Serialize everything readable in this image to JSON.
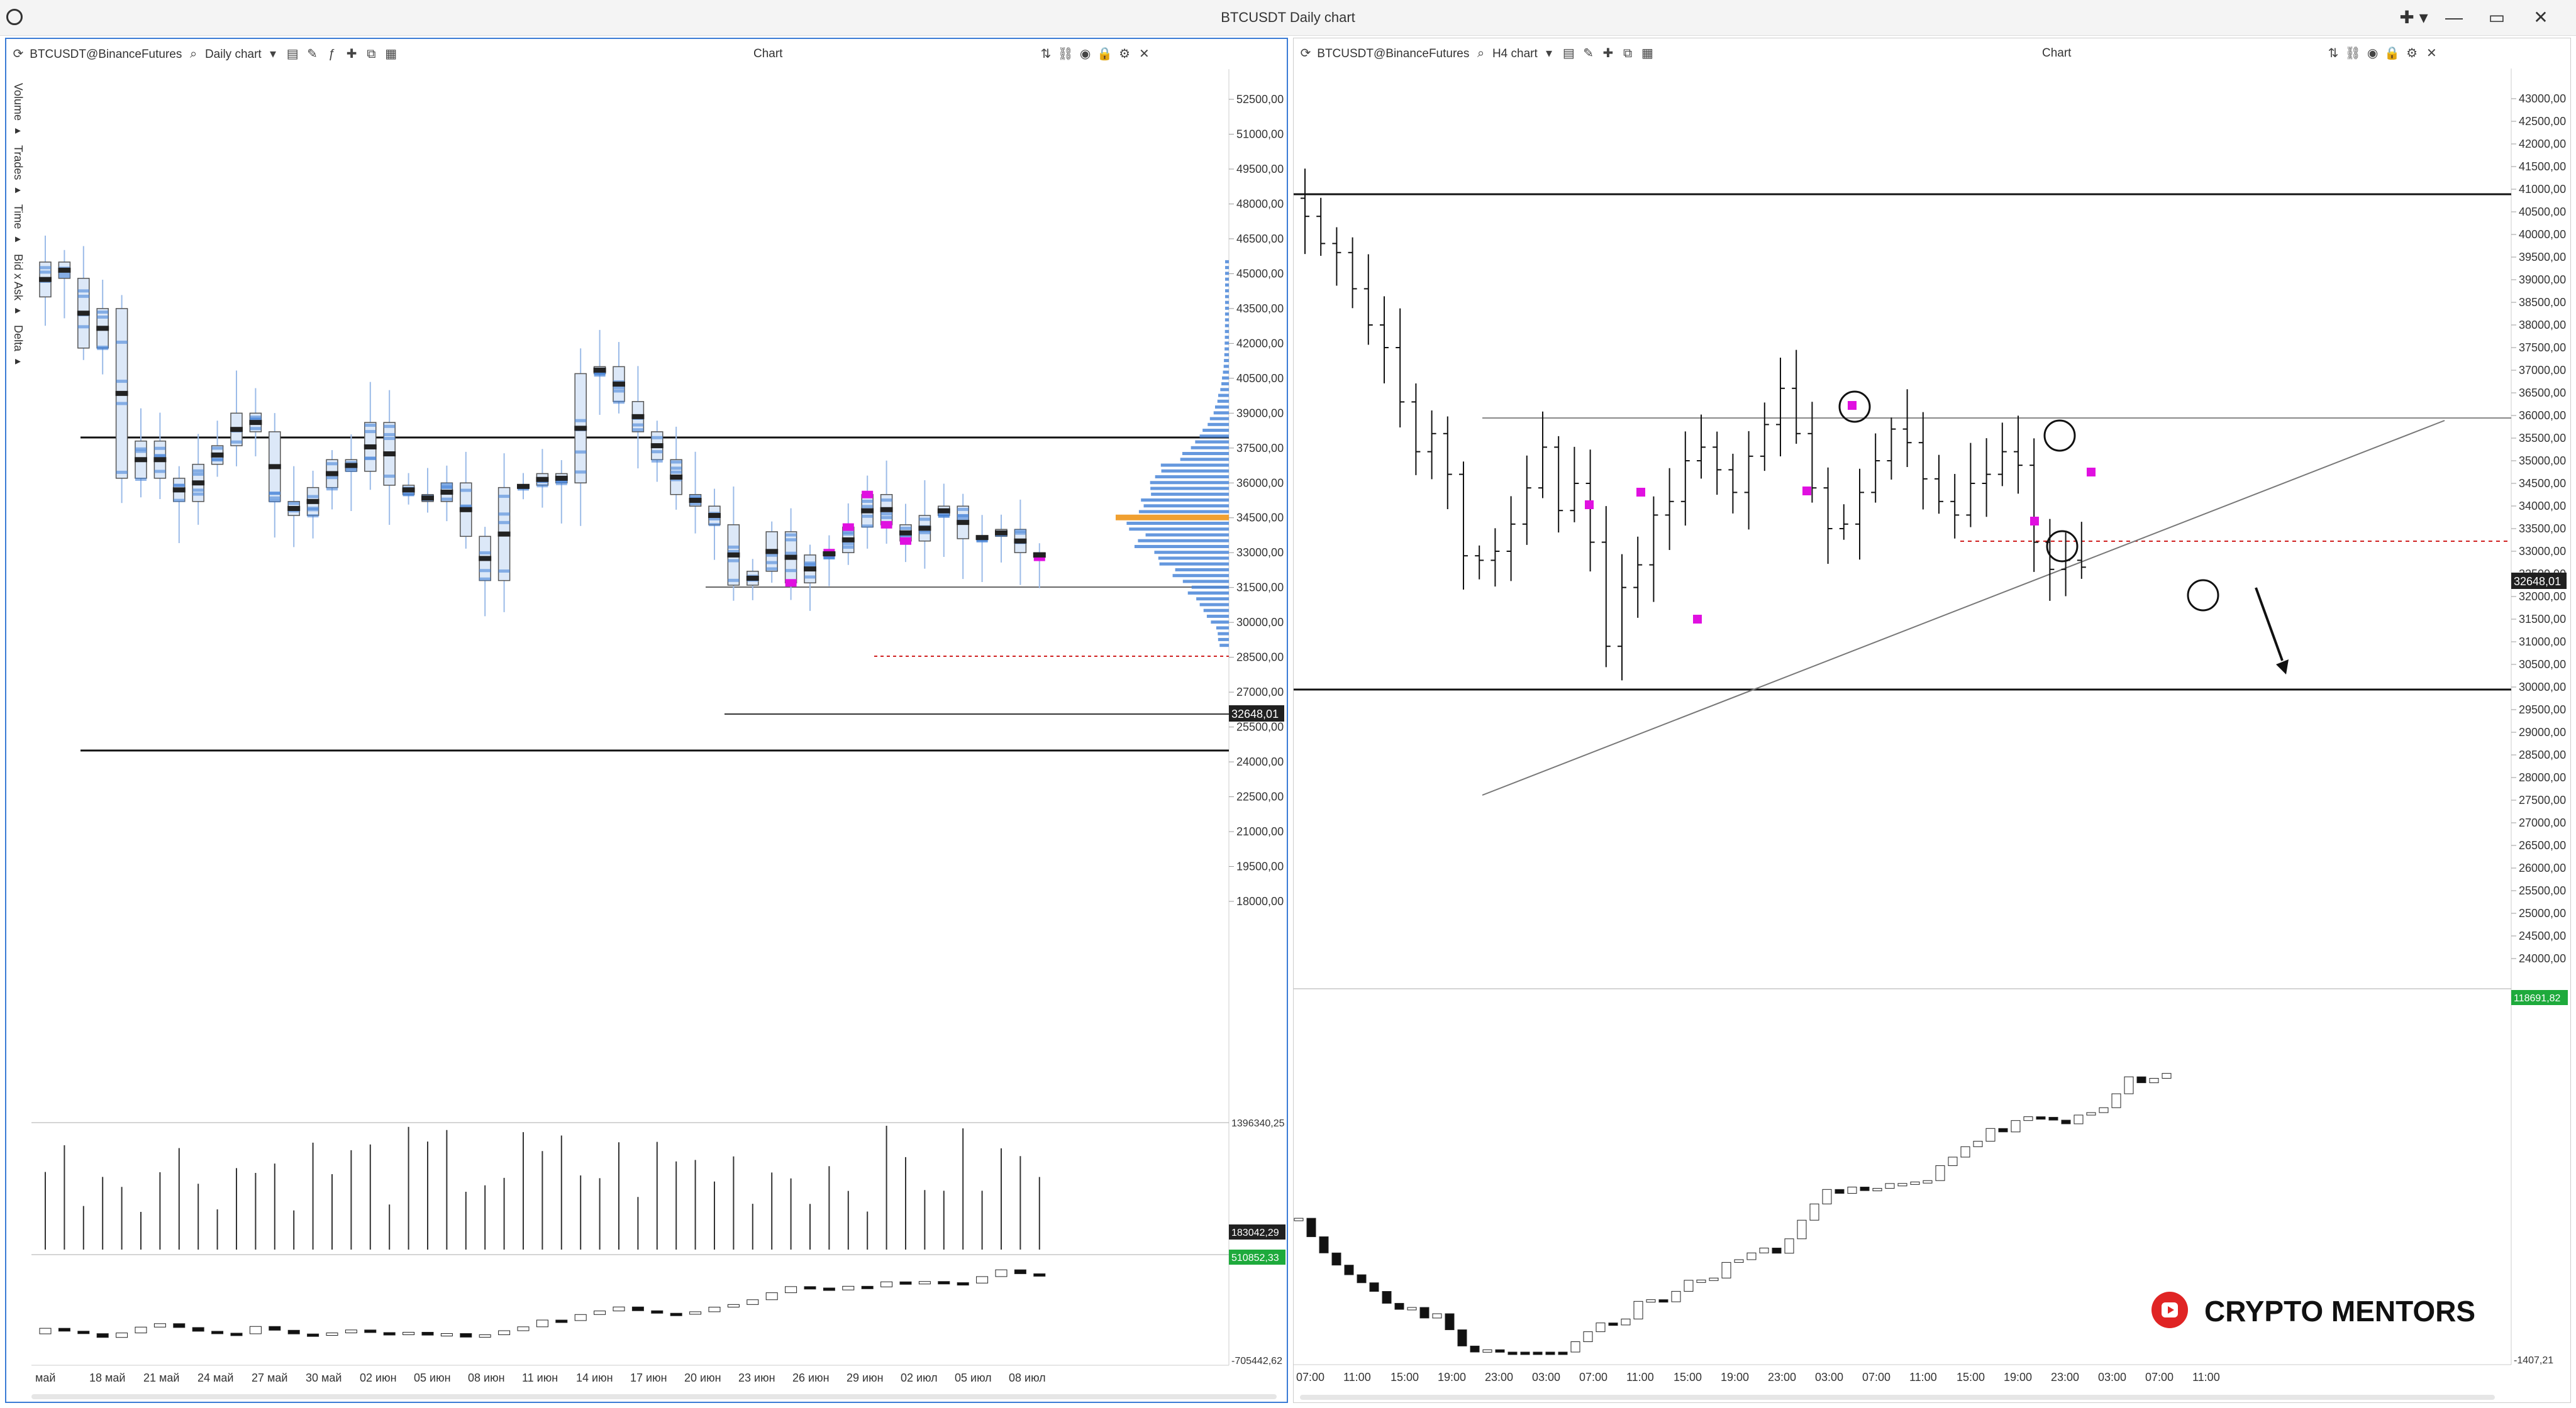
{
  "window": {
    "title": "BTCUSDT Daily chart",
    "controls": [
      "✚ ▾",
      "—",
      "▭",
      "✕"
    ]
  },
  "left": {
    "symbol": "BTCUSDT@BinanceFutures",
    "timeframe": "Daily chart",
    "pane_title": "Chart",
    "side_tabs": [
      "Volume ▸",
      "Trades ▸",
      "Time ▸",
      "Bid x Ask ▸",
      "Delta ▸"
    ],
    "price_ticks": [
      "52500,00",
      "51000,00",
      "49500,00",
      "48000,00",
      "46500,00",
      "45000,00",
      "43500,00",
      "42000,00",
      "40500,00",
      "39000,00",
      "37500,00",
      "36000,00",
      "34500,00",
      "33000,00",
      "31500,00",
      "30000,00",
      "28500,00",
      "27000,00",
      "25500,00",
      "24000,00",
      "22500,00",
      "21000,00",
      "19500,00",
      "18000,00"
    ],
    "last_price": "32648,01",
    "volume_max": "1396340,25",
    "volume_last": "183042,29",
    "delta_last": "510852,33",
    "delta_min": "-705442,62",
    "date_ticks": [
      "май",
      "18 май",
      "21 май",
      "24 май",
      "27 май",
      "30 май",
      "02 июн",
      "05 июн",
      "08 июн",
      "11 июн",
      "14 июн",
      "17 июн",
      "20 июн",
      "23 июн",
      "26 июн",
      "29 июн",
      "02 июл",
      "05 июл",
      "08 июл"
    ]
  },
  "right": {
    "symbol": "BTCUSDT@BinanceFutures",
    "timeframe": "H4 chart",
    "pane_title": "Chart",
    "price_ticks": [
      "43000,00",
      "42500,00",
      "42000,00",
      "41500,00",
      "41000,00",
      "40500,00",
      "40000,00",
      "39500,00",
      "39000,00",
      "38500,00",
      "38000,00",
      "37500,00",
      "37000,00",
      "36500,00",
      "36000,00",
      "35500,00",
      "35000,00",
      "34500,00",
      "34000,00",
      "33500,00",
      "33000,00",
      "32500,00",
      "32000,00",
      "31500,00",
      "31000,00",
      "30500,00",
      "30000,00",
      "29500,00",
      "29000,00",
      "28500,00",
      "28000,00",
      "27500,00",
      "27000,00",
      "26500,00",
      "26000,00",
      "25500,00",
      "25000,00",
      "24500,00",
      "24000,00"
    ],
    "last_price": "32648,01",
    "delta_max": "118691,82",
    "delta_min": "-1407,21",
    "time_ticks": [
      "07:00",
      "11:00",
      "15:00",
      "19:00",
      "23:00",
      "03:00",
      "07:00",
      "11:00",
      "15:00",
      "19:00",
      "23:00",
      "03:00",
      "07:00",
      "11:00",
      "15:00",
      "19:00",
      "23:00",
      "03:00",
      "07:00",
      "11:00"
    ]
  },
  "brand": {
    "text": "CRYPTO MENTORS",
    "icon": "youtube-icon",
    "color": "#e02424"
  },
  "colors": {
    "accent_border": "#3a7bd5",
    "cluster_blue": "#4a86d8",
    "highlight_magenta": "#e010e0",
    "poc_orange": "#f0a030",
    "last_price_box": "#202020",
    "delta_box": "#1eaa3c"
  }
}
